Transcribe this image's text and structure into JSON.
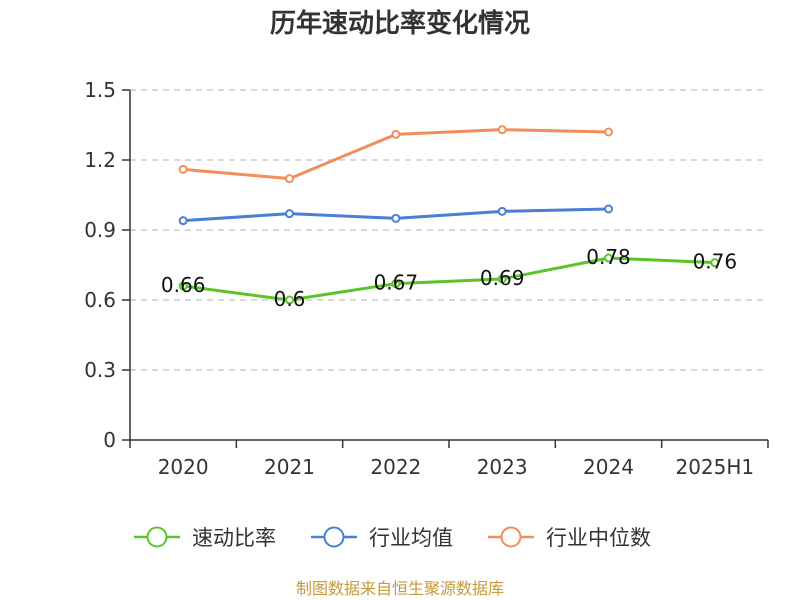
{
  "chart_data": {
    "type": "line",
    "title": "历年速动比率变化情况",
    "categories": [
      "2020",
      "2021",
      "2022",
      "2023",
      "2024",
      "2025H1"
    ],
    "ylim": [
      0,
      1.5
    ],
    "yticks": [
      "0",
      "0.3",
      "0.6",
      "0.9",
      "1.2",
      "1.5"
    ],
    "grid": true,
    "legend_position": "bottom",
    "series": [
      {
        "name": "速动比率",
        "color": "#5bc42a",
        "values": [
          0.66,
          0.6,
          0.67,
          0.69,
          0.78,
          0.76
        ],
        "labels": [
          "0.66",
          "0.6",
          "0.67",
          "0.69",
          "0.78",
          "0.76"
        ]
      },
      {
        "name": "行业均值",
        "color": "#4a7fd4",
        "values": [
          0.94,
          0.97,
          0.95,
          0.98,
          0.99,
          null
        ]
      },
      {
        "name": "行业中位数",
        "color": "#f28e5a",
        "values": [
          1.16,
          1.12,
          1.31,
          1.33,
          1.32,
          null
        ]
      }
    ],
    "source": "制图数据来自恒生聚源数据库"
  }
}
